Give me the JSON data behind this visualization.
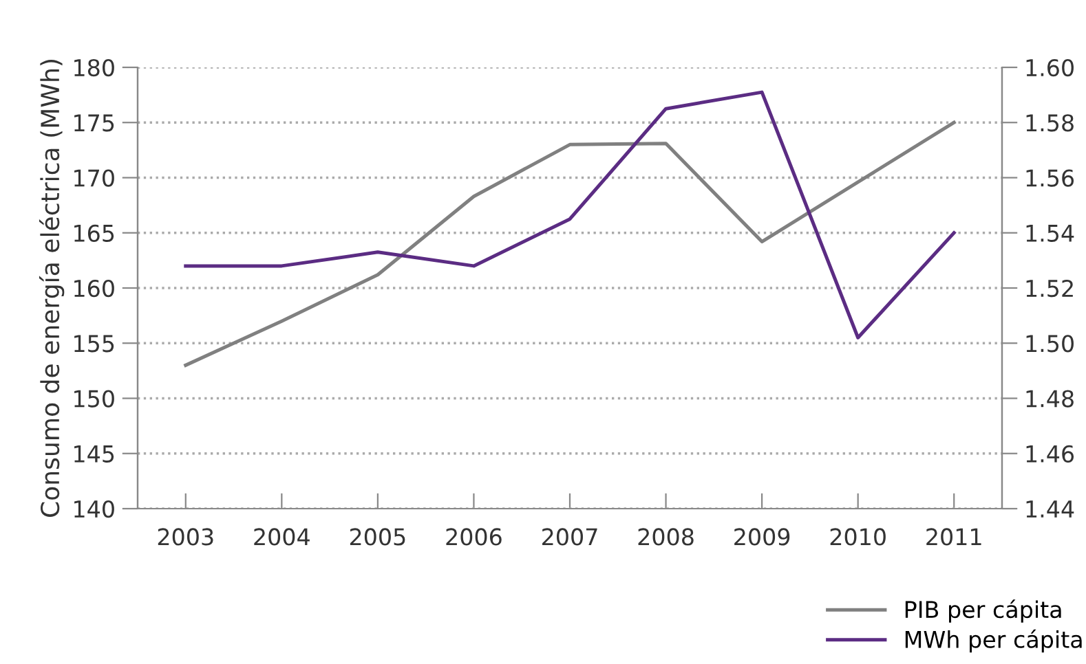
{
  "chart_data": {
    "type": "line",
    "ylabel": "Consumo de energía eléctrica (MWh)",
    "categories": [
      "2003",
      "2004",
      "2005",
      "2006",
      "2007",
      "2008",
      "2009",
      "2010",
      "2011"
    ],
    "series": [
      {
        "name": "PIB per cápita",
        "color": "#808080",
        "values": [
          153,
          157,
          161.2,
          168.3,
          173,
          173.1,
          164.2,
          169.6,
          175
        ]
      },
      {
        "name": "MWh per cápita",
        "color": "#5b2c83",
        "axis": "y2",
        "values": [
          1.528,
          1.528,
          1.533,
          1.528,
          1.545,
          1.585,
          1.591,
          1.502,
          1.54
        ]
      }
    ],
    "ylim": [
      140,
      180
    ],
    "yticks": [
      140,
      145,
      150,
      155,
      160,
      165,
      170,
      175,
      180
    ],
    "y2lim": [
      1.44,
      1.6
    ],
    "y2ticks": [
      {
        "value": 1.44,
        "label": "1.44"
      },
      {
        "value": 1.46,
        "label": "1.46"
      },
      {
        "value": 1.48,
        "label": "1.48"
      },
      {
        "value": 1.5,
        "label": "1.50"
      },
      {
        "value": 1.52,
        "label": "1.52"
      },
      {
        "value": 1.54,
        "label": "1.54"
      },
      {
        "value": 1.56,
        "label": "1.56"
      },
      {
        "value": 1.58,
        "label": "1.58"
      },
      {
        "value": 1.6,
        "label": "1.60"
      }
    ],
    "grid": "y",
    "legend": "bottom right",
    "marker": "none",
    "line_style": "solid"
  }
}
